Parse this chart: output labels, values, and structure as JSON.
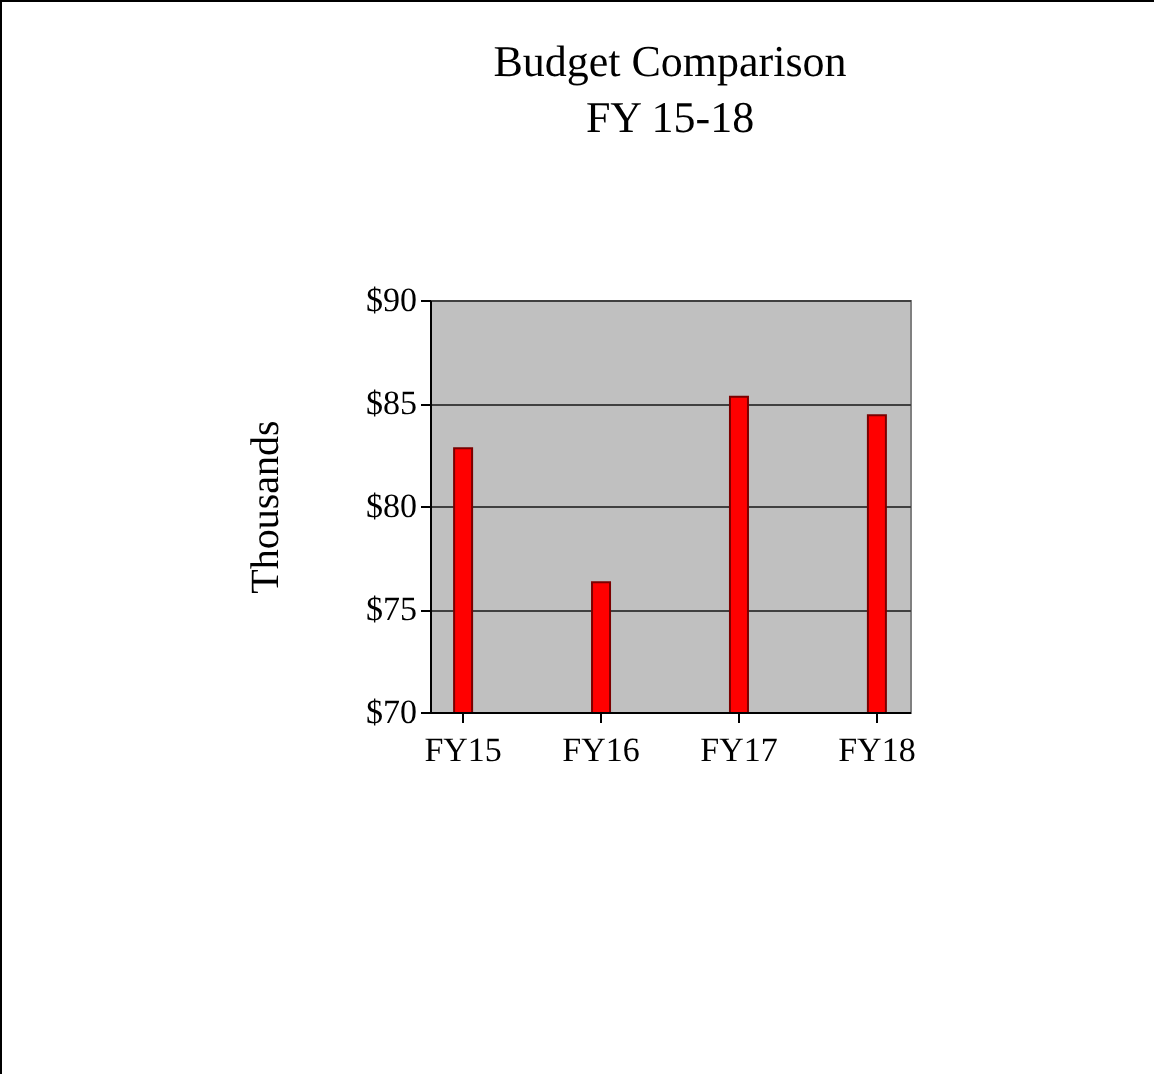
{
  "chart_data": {
    "type": "bar",
    "title": [
      "Budget Comparison",
      "FY 15-18"
    ],
    "ylabel": "Thousands",
    "categories": [
      "FY15",
      "FY16",
      "FY17",
      "FY18"
    ],
    "values": [
      82.8,
      76.3,
      85.3,
      84.4
    ],
    "color": "#ff0000",
    "ylim": [
      70,
      90
    ],
    "yticks": [
      {
        "value": 70,
        "label": "$70"
      },
      {
        "value": 75,
        "label": "$75"
      },
      {
        "value": 80,
        "label": "$80"
      },
      {
        "value": 85,
        "label": "$85"
      },
      {
        "value": 90,
        "label": "$90"
      }
    ],
    "grid": "y",
    "legend": false
  }
}
